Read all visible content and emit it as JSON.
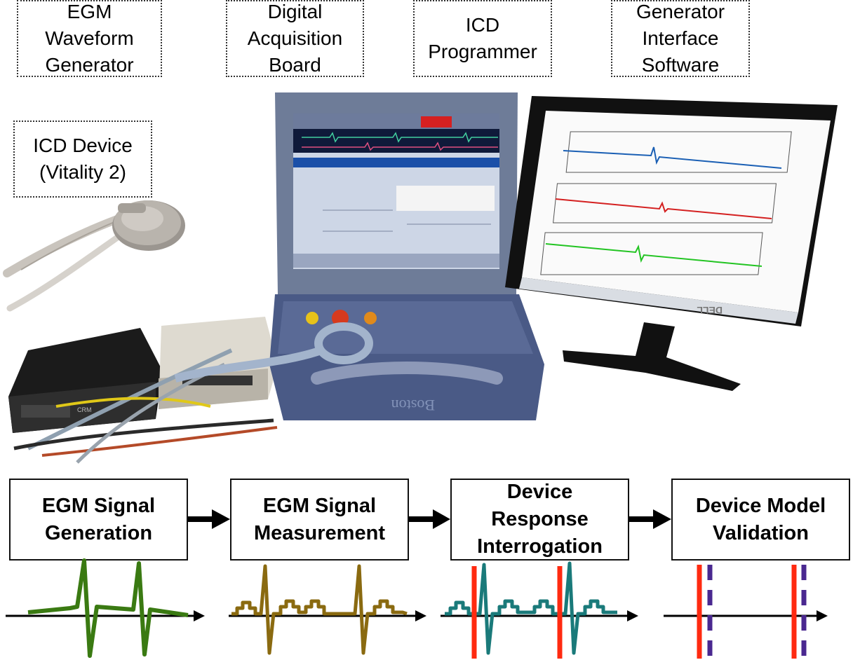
{
  "photo_labels": {
    "egm_generator": [
      "EGM",
      "Waveform",
      "Generator"
    ],
    "acquisition_board": [
      "Digital",
      "Acquisition",
      "Board"
    ],
    "icd_programmer": [
      "ICD",
      "Programmer"
    ],
    "interface_software": [
      "Generator",
      "Interface",
      "Software"
    ],
    "icd_device": [
      "ICD Device",
      "(Vitality 2)"
    ]
  },
  "programmer_brand": "Boston",
  "monitor_brand": "DELL",
  "pipeline": [
    {
      "lines": [
        "EGM Signal",
        "Generation"
      ]
    },
    {
      "lines": [
        "EGM Signal",
        "Measurement"
      ]
    },
    {
      "lines": [
        "Device",
        "Response",
        "Interrogation"
      ]
    },
    {
      "lines": [
        "Device Model",
        "Validation"
      ]
    }
  ],
  "colors": {
    "generation_wave": "#3a7a12",
    "measurement_wave": "#8a6a10",
    "interrogation_wave": "#1a7a7a",
    "sense_marker": "#ff2a10",
    "model_marker": "#4a2890",
    "monitor_trace_1": "#1a5fb4",
    "monitor_trace_2": "#d42020",
    "monitor_trace_3": "#22c422"
  }
}
